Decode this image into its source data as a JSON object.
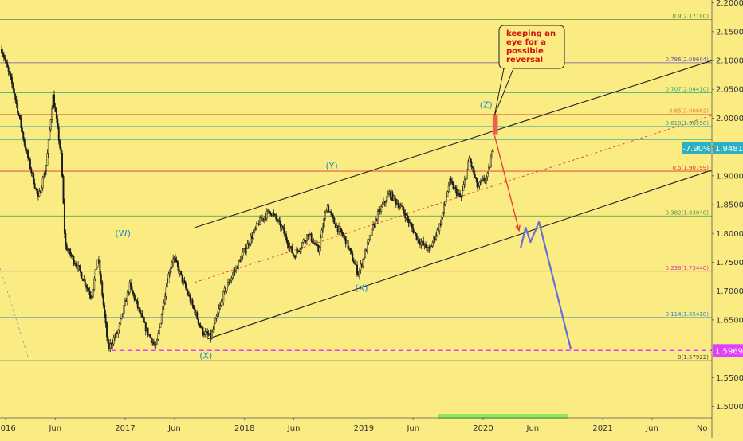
{
  "colors": {
    "background": "#fbeb83",
    "candles": "#1a1a1a",
    "channel": "#222222",
    "forecast_red": "#e53935",
    "forecast_blue": "#6a6fd8",
    "support_magenta": "#e040fb",
    "wave_labels": "#1e88c8",
    "callout_text": "#d01010",
    "highlight_green": "#8ee85a"
  },
  "chart_data": {
    "type": "candlestick",
    "title": "",
    "x_axis": {
      "tick_labels": [
        "2016",
        "Jun",
        "2017",
        "Jun",
        "2018",
        "Jun",
        "2019",
        "Jun",
        "2020",
        "Jun",
        "2021",
        "Jun",
        "No"
      ],
      "tick_dates": [
        "2016-01-01",
        "2016-06-01",
        "2017-01-01",
        "2017-06-01",
        "2018-01-01",
        "2018-06-01",
        "2019-01-01",
        "2019-06-01",
        "2020-01-01",
        "2020-06-01",
        "2021-01-01",
        "2021-06-01",
        "2021-11-01"
      ],
      "range": [
        "2015-12-15",
        "2021-12-01"
      ]
    },
    "y_axis": {
      "tick_labels": [
        "2.20000",
        "2.15000",
        "2.10000",
        "2.05000",
        "2.00000",
        "1.95000",
        "1.90000",
        "1.85000",
        "1.80000",
        "1.75000",
        "1.70000",
        "1.65000",
        "1.60000",
        "1.55000",
        "1.50000"
      ],
      "range": [
        1.48,
        2.205
      ],
      "position": "right"
    },
    "fib_levels": [
      {
        "label": "0.9(2.17100)",
        "value": 2.171,
        "color": "#5a8a3a"
      },
      {
        "label": "0.786(2.09604)",
        "value": 2.09604,
        "color": "#6a4fb0"
      },
      {
        "label": "0.707(2.04410)",
        "value": 2.0441,
        "color": "#2aa87a"
      },
      {
        "label": "0.65(2.00662)",
        "value": 2.00662,
        "color": "#e08040"
      },
      {
        "label": "0.618(1.98558)",
        "value": 1.98558,
        "color": "#2a9aa0"
      },
      {
        "label": "0.5(1.90799)",
        "value": 1.90799,
        "color": "#e03030"
      },
      {
        "label": "0.382(1.83040)",
        "value": 1.8304,
        "color": "#4a9a40"
      },
      {
        "label": "0.236(1.73440)",
        "value": 1.7344,
        "color": "#d040a0"
      },
      {
        "label": "0.114(1.65418)",
        "value": 1.65418,
        "color": "#2a8ac0"
      },
      {
        "label": "0(1.57922)",
        "value": 1.57922,
        "color": "#444444"
      }
    ],
    "extra_line": {
      "value": 1.963,
      "color": "#2aa8a0"
    },
    "price_path": [
      {
        "date": "2015-12-20",
        "price": 2.12
      },
      {
        "date": "2016-01-25",
        "price": 2.05
      },
      {
        "date": "2016-03-01",
        "price": 1.95
      },
      {
        "date": "2016-04-10",
        "price": 1.86
      },
      {
        "date": "2016-05-05",
        "price": 1.92
      },
      {
        "date": "2016-05-25",
        "price": 2.04
      },
      {
        "date": "2016-06-20",
        "price": 1.93
      },
      {
        "date": "2016-07-01",
        "price": 1.78
      },
      {
        "date": "2016-08-10",
        "price": 1.74
      },
      {
        "date": "2016-09-20",
        "price": 1.69
      },
      {
        "date": "2016-10-10",
        "price": 1.76
      },
      {
        "date": "2016-11-10",
        "price": 1.6
      },
      {
        "date": "2016-12-10",
        "price": 1.63
      },
      {
        "date": "2017-01-15",
        "price": 1.71
      },
      {
        "date": "2017-03-01",
        "price": 1.64
      },
      {
        "date": "2017-04-05",
        "price": 1.6
      },
      {
        "date": "2017-05-10",
        "price": 1.72
      },
      {
        "date": "2017-05-28",
        "price": 1.76
      },
      {
        "date": "2017-07-15",
        "price": 1.69
      },
      {
        "date": "2017-08-25",
        "price": 1.63
      },
      {
        "date": "2017-09-20",
        "price": 1.62
      },
      {
        "date": "2017-11-01",
        "price": 1.7
      },
      {
        "date": "2018-01-01",
        "price": 1.77
      },
      {
        "date": "2018-02-15",
        "price": 1.82
      },
      {
        "date": "2018-03-20",
        "price": 1.84
      },
      {
        "date": "2018-04-25",
        "price": 1.81
      },
      {
        "date": "2018-06-01",
        "price": 1.76
      },
      {
        "date": "2018-07-15",
        "price": 1.8
      },
      {
        "date": "2018-08-15",
        "price": 1.77
      },
      {
        "date": "2018-09-10",
        "price": 1.85
      },
      {
        "date": "2018-10-01",
        "price": 1.82
      },
      {
        "date": "2018-11-05",
        "price": 1.79
      },
      {
        "date": "2018-12-15",
        "price": 1.73
      },
      {
        "date": "2019-02-10",
        "price": 1.83
      },
      {
        "date": "2019-03-20",
        "price": 1.87
      },
      {
        "date": "2019-05-01",
        "price": 1.84
      },
      {
        "date": "2019-06-15",
        "price": 1.79
      },
      {
        "date": "2019-07-20",
        "price": 1.77
      },
      {
        "date": "2019-08-25",
        "price": 1.82
      },
      {
        "date": "2019-09-20",
        "price": 1.89
      },
      {
        "date": "2019-10-25",
        "price": 1.86
      },
      {
        "date": "2019-11-20",
        "price": 1.93
      },
      {
        "date": "2019-12-15",
        "price": 1.88
      },
      {
        "date": "2020-01-15",
        "price": 1.9
      },
      {
        "date": "2020-02-01",
        "price": 1.948
      }
    ],
    "channel": {
      "upper": {
        "from": {
          "date": "2017-08-01",
          "price": 1.81
        },
        "to": {
          "date": "2021-12-01",
          "price": 2.1
        }
      },
      "lower": {
        "from": {
          "date": "2017-09-10",
          "price": 1.617
        },
        "to": {
          "date": "2021-12-01",
          "price": 1.91
        }
      },
      "mid": {
        "from": {
          "date": "2017-08-01",
          "price": 1.715
        },
        "to": {
          "date": "2021-12-01",
          "price": 2.005
        }
      }
    },
    "support_line": {
      "value": 1.59695,
      "label": "1.59695",
      "from": "2016-11-20",
      "to": "2021-12-01"
    },
    "current_price": {
      "value": 1.94814,
      "label": "1.94814",
      "change_label": "-7.90%"
    },
    "zone_marker": {
      "from": "2020-01-30",
      "to": "2020-02-15",
      "top": 2.005,
      "bottom": 1.972
    },
    "forecast_red": [
      {
        "date": "2020-02-05",
        "price": 1.97
      },
      {
        "date": "2020-04-20",
        "price": 1.805
      }
    ],
    "forecast_blue": [
      {
        "date": "2020-04-25",
        "price": 1.775
      },
      {
        "date": "2020-05-10",
        "price": 1.81
      },
      {
        "date": "2020-05-25",
        "price": 1.785
      },
      {
        "date": "2020-06-20",
        "price": 1.82
      },
      {
        "date": "2020-09-25",
        "price": 1.6
      }
    ],
    "dashed_guide": [
      {
        "date": "2015-12-15",
        "price": 1.74
      },
      {
        "date": "2016-03-10",
        "price": 1.585
      }
    ],
    "time_highlight": {
      "from": "2019-08-15",
      "to": "2020-09-15"
    },
    "wave_labels": [
      {
        "text": "(W)",
        "date": "2016-12-25",
        "price": 1.795
      },
      {
        "text": "(X)",
        "date": "2017-09-05",
        "price": 1.583
      },
      {
        "text": "(Y)",
        "date": "2018-09-25",
        "price": 1.912
      },
      {
        "text": "(X)",
        "date": "2018-12-25",
        "price": 1.7
      },
      {
        "text": "(Z)",
        "date": "2020-01-10",
        "price": 2.018
      }
    ],
    "callout": {
      "lines": [
        "keeping an",
        "eye for a",
        "possible",
        "reversal"
      ],
      "pointer_to": {
        "date": "2020-02-05",
        "price": 2.005
      }
    }
  }
}
